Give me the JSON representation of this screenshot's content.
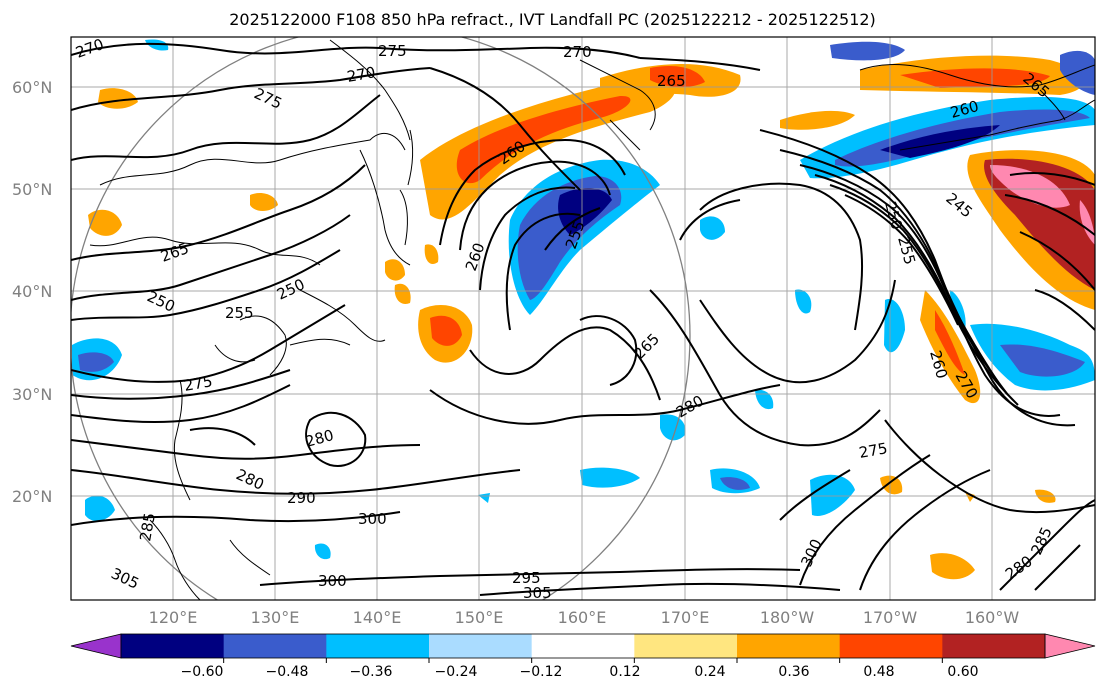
{
  "title": "2025122000 F108 850 hPa refract., IVT Landfall PC (2025122212 - 2025122512)",
  "axes": {
    "lat_labels": [
      "60°N",
      "50°N",
      "40°N",
      "30°N",
      "20°N"
    ],
    "lon_labels": [
      "120°E",
      "130°E",
      "140°E",
      "150°E",
      "160°E",
      "170°E",
      "180°W",
      "170°W",
      "160°W"
    ]
  },
  "contour_labels": [
    {
      "id": "c1",
      "text": "270"
    },
    {
      "id": "c2",
      "text": "275"
    },
    {
      "id": "c3",
      "text": "270"
    },
    {
      "id": "c4",
      "text": "270"
    },
    {
      "id": "c5",
      "text": "275"
    },
    {
      "id": "c6",
      "text": "265"
    },
    {
      "id": "c7",
      "text": "265"
    },
    {
      "id": "c8",
      "text": "260"
    },
    {
      "id": "c9",
      "text": "260"
    },
    {
      "id": "c10",
      "text": "245"
    },
    {
      "id": "c11",
      "text": "250"
    },
    {
      "id": "c12",
      "text": "255"
    },
    {
      "id": "c13",
      "text": "265"
    },
    {
      "id": "c14",
      "text": "255"
    },
    {
      "id": "c15",
      "text": "260"
    },
    {
      "id": "c16",
      "text": "250"
    },
    {
      "id": "c17",
      "text": "250"
    },
    {
      "id": "c18",
      "text": "255"
    },
    {
      "id": "c19",
      "text": "260"
    },
    {
      "id": "c20",
      "text": "270"
    },
    {
      "id": "c21",
      "text": "275"
    },
    {
      "id": "c22",
      "text": "265"
    },
    {
      "id": "c23",
      "text": "280"
    },
    {
      "id": "c24",
      "text": "280"
    },
    {
      "id": "c25",
      "text": "275"
    },
    {
      "id": "c26",
      "text": "280"
    },
    {
      "id": "c27",
      "text": "290"
    },
    {
      "id": "c28",
      "text": "300"
    },
    {
      "id": "c29",
      "text": "285"
    },
    {
      "id": "c30",
      "text": "305"
    },
    {
      "id": "c31",
      "text": "300"
    },
    {
      "id": "c32",
      "text": "295"
    },
    {
      "id": "c33",
      "text": "305"
    },
    {
      "id": "c34",
      "text": "300"
    },
    {
      "id": "c35",
      "text": "280"
    },
    {
      "id": "c36",
      "text": "285"
    }
  ],
  "colorbar": {
    "ticks": [
      "−0.60",
      "−0.48",
      "−0.36",
      "−0.24",
      "−0.12",
      "0.12",
      "0.24",
      "0.36",
      "0.48",
      "0.60"
    ],
    "colors": [
      "#9933cc",
      "#000080",
      "#3a5ccc",
      "#00bfff",
      "#aadcff",
      "#ffffff",
      "#ffe680",
      "#ffa500",
      "#ff4500",
      "#b22222",
      "#ff88b0"
    ]
  }
}
